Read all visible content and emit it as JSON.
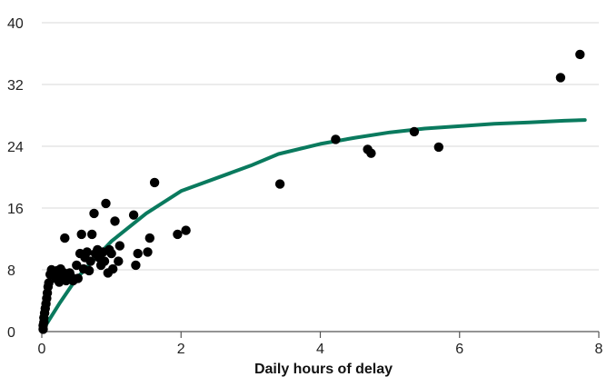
{
  "chart_data": {
    "type": "scatter",
    "title": "",
    "ylabel": "",
    "xlabel": "Daily hours of delay",
    "xlim": [
      0,
      8
    ],
    "ylim": [
      0,
      40
    ],
    "x_ticks": [
      0,
      2,
      4,
      6,
      8
    ],
    "y_ticks": [
      0,
      8,
      16,
      24,
      32,
      40
    ],
    "grid": "horizontal",
    "colors": {
      "points": "#000000",
      "curve": "#0a7a5e",
      "grid": "#d9d9d9"
    },
    "series": [
      {
        "type": "scatter",
        "points": [
          [
            0.02,
            0.3
          ],
          [
            0.02,
            0.8
          ],
          [
            0.03,
            1.2
          ],
          [
            0.03,
            1.8
          ],
          [
            0.04,
            2.4
          ],
          [
            0.05,
            3.0
          ],
          [
            0.06,
            3.6
          ],
          [
            0.07,
            4.3
          ],
          [
            0.08,
            5.0
          ],
          [
            0.09,
            5.8
          ],
          [
            0.1,
            6.3
          ],
          [
            0.12,
            7.4
          ],
          [
            0.14,
            8.0
          ],
          [
            0.18,
            7.6
          ],
          [
            0.2,
            6.9
          ],
          [
            0.22,
            7.9
          ],
          [
            0.25,
            6.4
          ],
          [
            0.27,
            8.1
          ],
          [
            0.3,
            7.1
          ],
          [
            0.32,
            7.6
          ],
          [
            0.33,
            12.1
          ],
          [
            0.35,
            6.6
          ],
          [
            0.4,
            7.6
          ],
          [
            0.42,
            7.1
          ],
          [
            0.45,
            6.6
          ],
          [
            0.5,
            8.6
          ],
          [
            0.52,
            6.9
          ],
          [
            0.55,
            10.1
          ],
          [
            0.57,
            12.6
          ],
          [
            0.6,
            8.1
          ],
          [
            0.62,
            9.6
          ],
          [
            0.65,
            10.3
          ],
          [
            0.68,
            7.9
          ],
          [
            0.7,
            9.1
          ],
          [
            0.72,
            12.6
          ],
          [
            0.75,
            15.3
          ],
          [
            0.77,
            10.1
          ],
          [
            0.8,
            10.6
          ],
          [
            0.82,
            9.6
          ],
          [
            0.85,
            8.6
          ],
          [
            0.88,
            10.3
          ],
          [
            0.9,
            9.1
          ],
          [
            0.92,
            16.6
          ],
          [
            0.95,
            7.6
          ],
          [
            0.97,
            10.6
          ],
          [
            1.0,
            10.1
          ],
          [
            1.02,
            8.1
          ],
          [
            1.05,
            14.3
          ],
          [
            1.1,
            9.1
          ],
          [
            1.12,
            11.1
          ],
          [
            1.32,
            15.1
          ],
          [
            1.35,
            8.6
          ],
          [
            1.38,
            10.1
          ],
          [
            1.52,
            10.3
          ],
          [
            1.55,
            12.1
          ],
          [
            1.62,
            19.3
          ],
          [
            1.95,
            12.6
          ],
          [
            2.07,
            13.1
          ],
          [
            3.42,
            19.1
          ],
          [
            4.22,
            24.9
          ],
          [
            4.68,
            23.6
          ],
          [
            4.73,
            23.1
          ],
          [
            5.35,
            25.9
          ],
          [
            5.7,
            23.9
          ],
          [
            7.45,
            32.9
          ],
          [
            7.73,
            35.9
          ]
        ]
      },
      {
        "type": "line",
        "x": [
          0,
          0.25,
          0.5,
          1.0,
          1.5,
          2.0,
          3.0,
          3.4,
          4.0,
          4.5,
          5.0,
          5.5,
          6.0,
          6.5,
          7.0,
          7.5,
          7.8
        ],
        "y": [
          0,
          3.6,
          6.9,
          11.7,
          15.3,
          18.2,
          21.5,
          23.0,
          24.3,
          25.1,
          25.8,
          26.3,
          26.6,
          26.9,
          27.1,
          27.3,
          27.4
        ]
      }
    ]
  }
}
